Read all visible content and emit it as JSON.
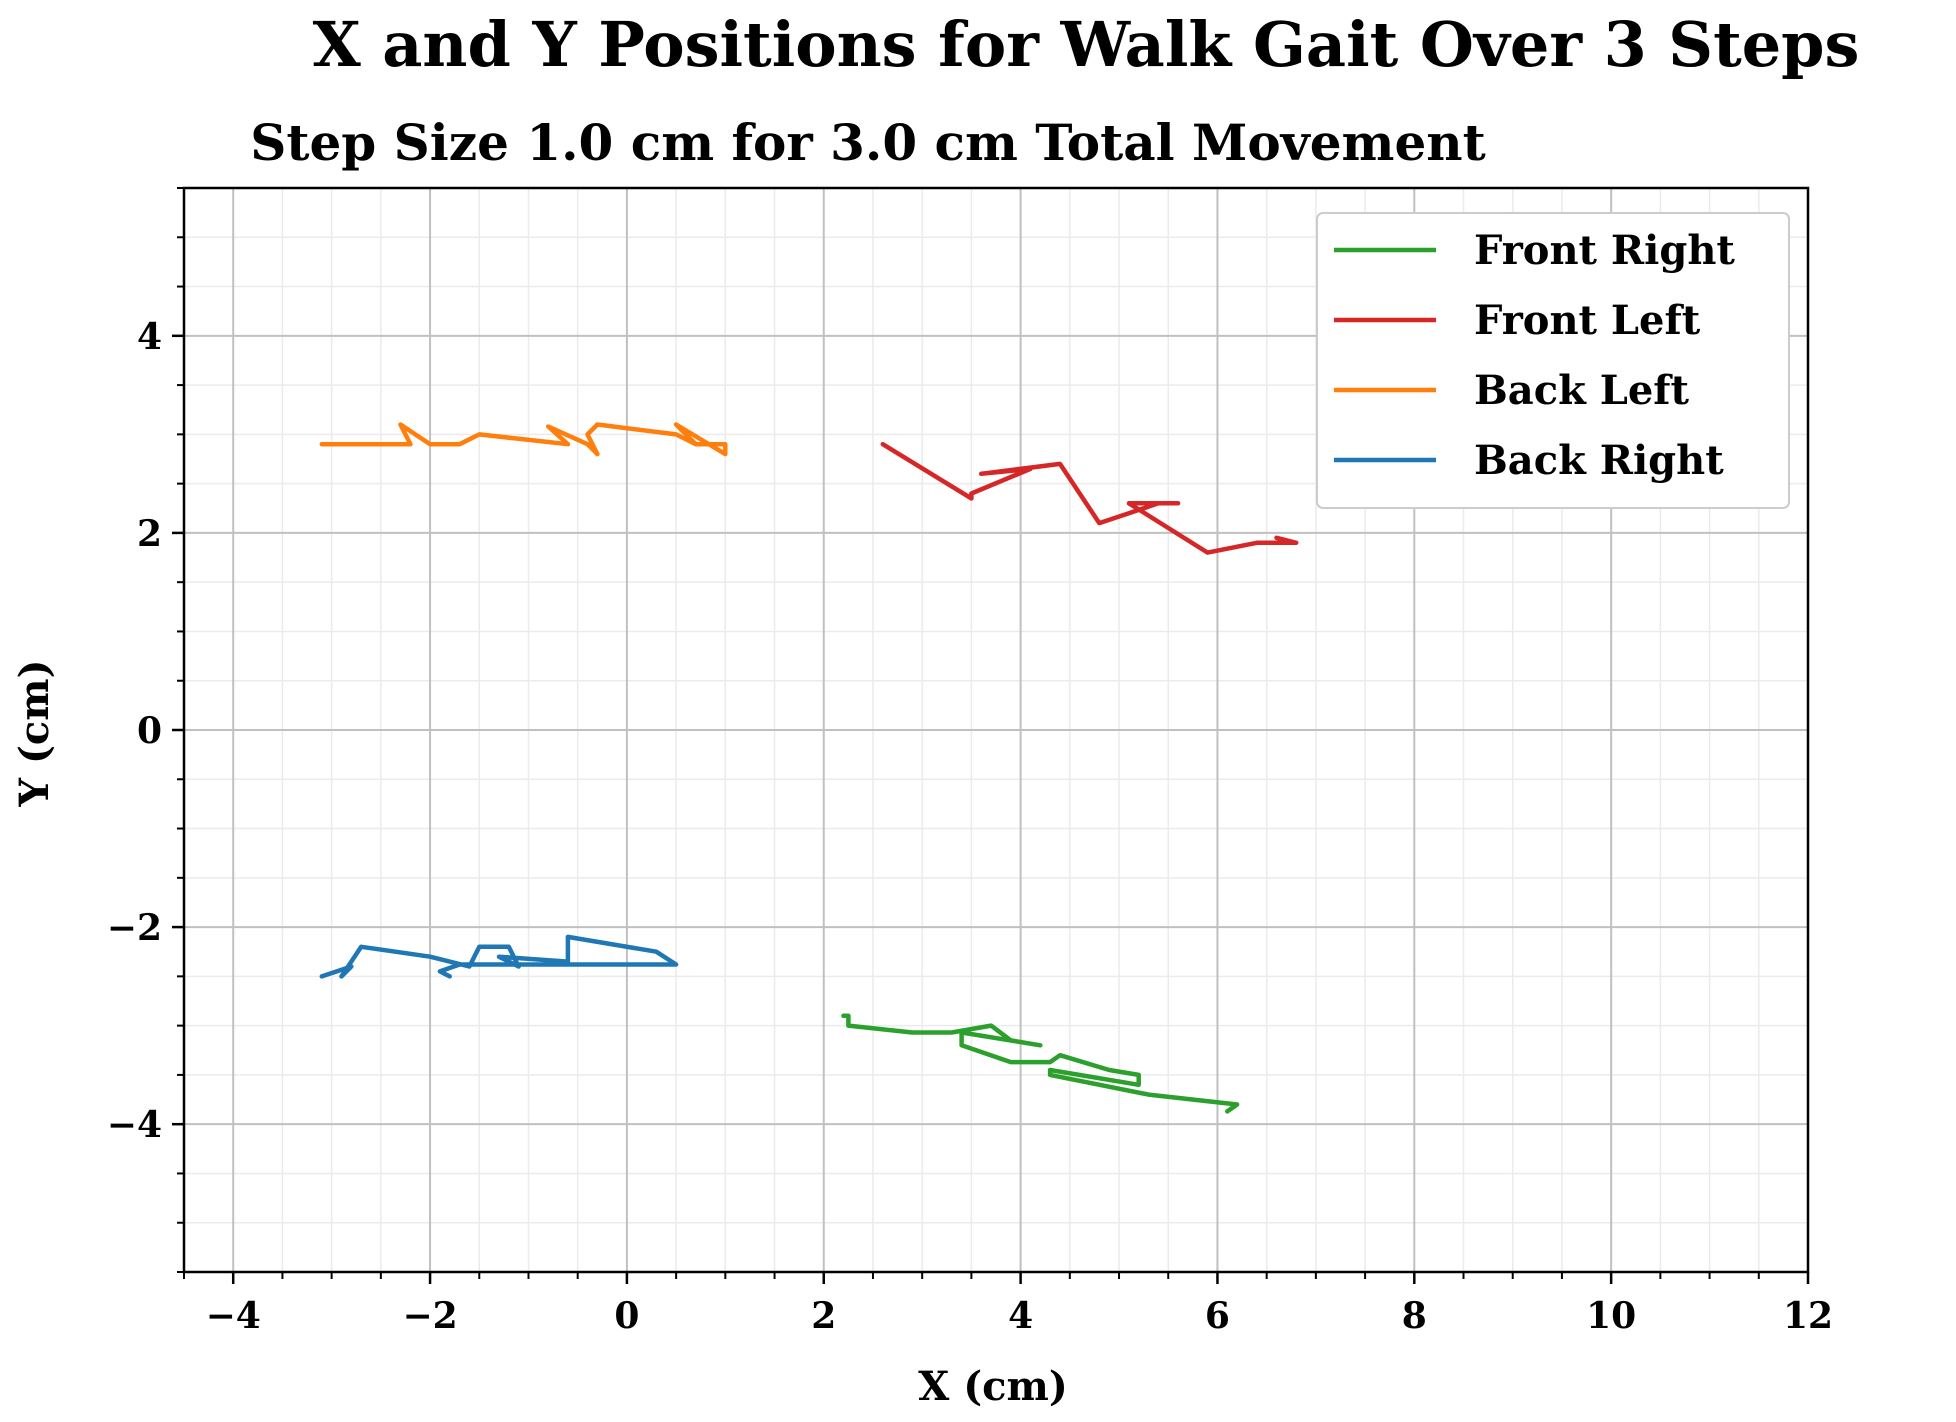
{
  "chart_data": {
    "type": "line",
    "title": "X and Y Positions for Walk Gait Over 3 Steps",
    "subtitle": "Step Size 1.0 cm for 3.0 cm Total Movement",
    "xlabel": "X (cm)",
    "ylabel": "Y (cm)",
    "xlim": [
      -4.5,
      12
    ],
    "ylim": [
      -5.5,
      5.5
    ],
    "x_ticks": [
      -4,
      -2,
      0,
      2,
      4,
      6,
      8,
      10,
      12
    ],
    "x_tick_labels": [
      "−4",
      "−2",
      "0",
      "2",
      "4",
      "6",
      "8",
      "10",
      "12"
    ],
    "y_ticks": [
      -4,
      -2,
      0,
      2,
      4
    ],
    "y_tick_labels": [
      "−4",
      "−2",
      "0",
      "2",
      "4"
    ],
    "grid": true,
    "minor_grid": true,
    "legend_position": "top-right",
    "series": [
      {
        "name": "Front Right",
        "color": "#2ca02c",
        "points": [
          [
            2.2,
            -2.9
          ],
          [
            2.25,
            -2.9
          ],
          [
            2.25,
            -3.0
          ],
          [
            2.9,
            -3.07
          ],
          [
            3.3,
            -3.07
          ],
          [
            3.7,
            -3.0
          ],
          [
            3.9,
            -3.15
          ],
          [
            4.2,
            -3.2
          ],
          [
            3.4,
            -3.07
          ],
          [
            3.4,
            -3.2
          ],
          [
            3.9,
            -3.37
          ],
          [
            4.3,
            -3.37
          ],
          [
            4.4,
            -3.3
          ],
          [
            4.9,
            -3.45
          ],
          [
            5.2,
            -3.5
          ],
          [
            5.2,
            -3.6
          ],
          [
            4.3,
            -3.45
          ],
          [
            4.3,
            -3.5
          ],
          [
            5.3,
            -3.7
          ],
          [
            6.2,
            -3.8
          ],
          [
            6.1,
            -3.87
          ]
        ]
      },
      {
        "name": "Front Left",
        "color": "#d62728",
        "points": [
          [
            2.6,
            2.9
          ],
          [
            3.5,
            2.35
          ],
          [
            3.5,
            2.4
          ],
          [
            4.1,
            2.65
          ],
          [
            3.6,
            2.6
          ],
          [
            4.4,
            2.7
          ],
          [
            4.8,
            2.1
          ],
          [
            5.1,
            2.2
          ],
          [
            5.4,
            2.3
          ],
          [
            5.6,
            2.3
          ],
          [
            5.1,
            2.3
          ],
          [
            5.9,
            1.8
          ],
          [
            6.4,
            1.9
          ],
          [
            6.8,
            1.9
          ],
          [
            6.6,
            1.95
          ]
        ]
      },
      {
        "name": "Back Left",
        "color": "#ff7f0e",
        "points": [
          [
            -3.1,
            2.9
          ],
          [
            -2.2,
            2.9
          ],
          [
            -2.3,
            3.1
          ],
          [
            -2.0,
            2.9
          ],
          [
            -1.7,
            2.9
          ],
          [
            -1.5,
            3.0
          ],
          [
            -0.6,
            2.9
          ],
          [
            -0.8,
            3.08
          ],
          [
            -0.4,
            2.9
          ],
          [
            -0.3,
            2.8
          ],
          [
            -0.4,
            3.0
          ],
          [
            -0.3,
            3.1
          ],
          [
            0.5,
            3.0
          ],
          [
            0.7,
            2.9
          ],
          [
            0.5,
            3.1
          ],
          [
            1.0,
            2.8
          ],
          [
            1.0,
            2.9
          ],
          [
            0.7,
            2.9
          ]
        ]
      },
      {
        "name": "Back Right",
        "color": "#1f77b4",
        "points": [
          [
            -3.1,
            -2.5
          ],
          [
            -2.8,
            -2.4
          ],
          [
            -2.9,
            -2.5
          ],
          [
            -2.7,
            -2.2
          ],
          [
            -2.0,
            -2.3
          ],
          [
            -1.6,
            -2.4
          ],
          [
            -1.5,
            -2.2
          ],
          [
            -1.2,
            -2.2
          ],
          [
            -1.1,
            -2.4
          ],
          [
            -1.3,
            -2.3
          ],
          [
            -0.6,
            -2.35
          ],
          [
            -0.6,
            -2.1
          ],
          [
            0.3,
            -2.25
          ],
          [
            0.5,
            -2.38
          ],
          [
            0.1,
            -2.38
          ],
          [
            -0.5,
            -2.38
          ],
          [
            -0.7,
            -2.38
          ],
          [
            -1.7,
            -2.38
          ],
          [
            -1.9,
            -2.45
          ],
          [
            -1.8,
            -2.5
          ]
        ]
      }
    ]
  }
}
